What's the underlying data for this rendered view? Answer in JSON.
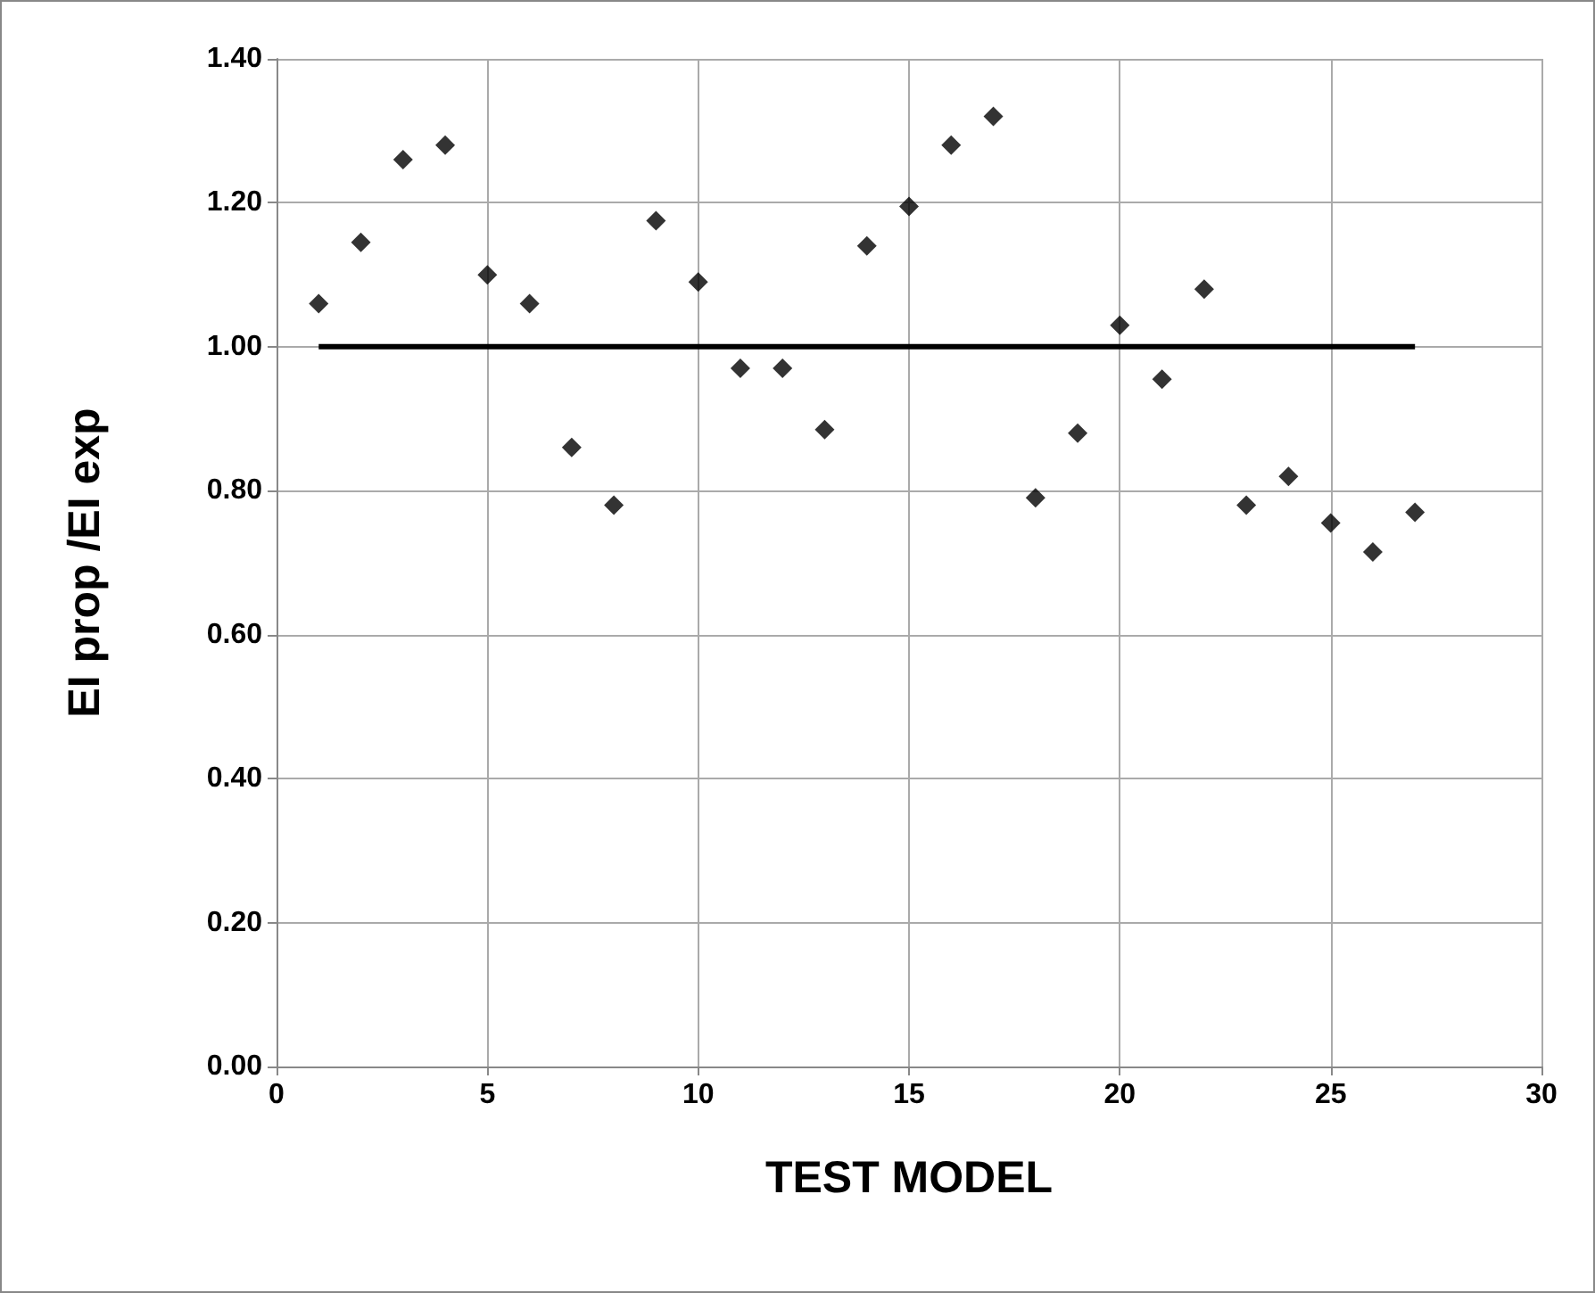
{
  "chart_data": {
    "type": "scatter",
    "xlabel": "TEST MODEL",
    "ylabel": "EI prop /EI exp",
    "xlim": [
      0,
      30
    ],
    "xticks": [
      0,
      5,
      10,
      15,
      20,
      25,
      30
    ],
    "ylim": [
      0,
      1.4
    ],
    "yticks": [
      {
        "value": 0,
        "label": "0.00"
      },
      {
        "value": 0.2,
        "label": "0.20"
      },
      {
        "value": 0.4,
        "label": "0.40"
      },
      {
        "value": 0.6,
        "label": "0.60"
      },
      {
        "value": 0.8,
        "label": "0.80"
      },
      {
        "value": 1,
        "label": "1.00"
      },
      {
        "value": 1.2,
        "label": "1.20"
      },
      {
        "value": 1.4,
        "label": "1.40"
      }
    ],
    "grid": true,
    "series": [
      {
        "marker": "diamond",
        "color": "#000000",
        "x": [
          1,
          2,
          3,
          4,
          5,
          6,
          7,
          8,
          9,
          10,
          11,
          12,
          13,
          14,
          15,
          16,
          17,
          18,
          19,
          20,
          21,
          22,
          23,
          24,
          25,
          26,
          27
        ],
        "values": [
          1.06,
          1.145,
          1.26,
          1.28,
          1.1,
          1.06,
          0.86,
          0.78,
          1.175,
          1.09,
          0.97,
          0.97,
          0.885,
          1.14,
          1.195,
          1.28,
          1.32,
          0.79,
          0.88,
          1.03,
          0.955,
          1.08,
          0.78,
          0.82,
          0.755,
          0.715,
          0.77
        ]
      },
      {
        "type": "line",
        "color": "#000000",
        "line_style": "solid",
        "x": [
          1,
          27
        ],
        "values": [
          1,
          1
        ]
      }
    ]
  }
}
